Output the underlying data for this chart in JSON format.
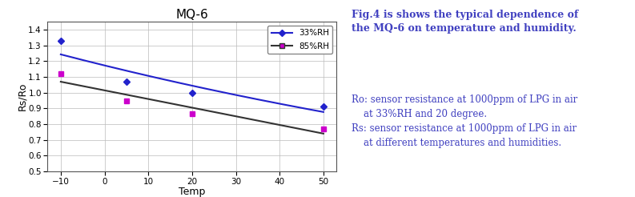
{
  "title": "MQ-6",
  "xlabel": "Temp",
  "ylabel": "Rs/Ro",
  "xlim": [
    -13,
    53
  ],
  "ylim": [
    0.5,
    1.45
  ],
  "xticks": [
    -10,
    0,
    10,
    20,
    30,
    40,
    50
  ],
  "yticks": [
    0.5,
    0.6,
    0.7,
    0.8,
    0.9,
    1.0,
    1.1,
    1.2,
    1.3,
    1.4
  ],
  "series_33": {
    "x": [
      -10,
      5,
      20,
      50
    ],
    "y": [
      1.33,
      1.07,
      1.0,
      0.91
    ],
    "line_color": "#2222cc",
    "marker_color": "#2222cc",
    "label": "33%RH"
  },
  "series_85": {
    "x": [
      -10,
      5,
      20,
      50
    ],
    "y": [
      1.12,
      0.945,
      0.865,
      0.77
    ],
    "line_color": "#333333",
    "marker_color": "#cc00cc",
    "label": "85%RH"
  },
  "annotation_line1": "Fig.4 is shows the typical dependence of",
  "annotation_line2": "the MQ-6 on temperature and humidity.",
  "annotation_line3": "Ro: sensor resistance at 1000ppm of LPG in air",
  "annotation_line4": "    at 33%RH and 20 degree.",
  "annotation_line5": "Rs: sensor resistance at 1000ppm of LPG in air",
  "annotation_line6": "    at different temperatures and humidities.",
  "background_color": "#ffffff",
  "grid_color": "#bbbbbb",
  "text_color": "#4040c0"
}
